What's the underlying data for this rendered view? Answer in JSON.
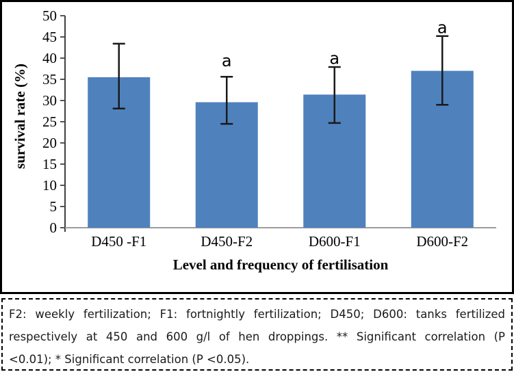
{
  "chart_data": {
    "type": "bar",
    "title": "",
    "xlabel": "Level and frequency of fertilisation",
    "ylabel": "survival rate (%)",
    "categories": [
      "D450 -F1",
      "D450-F2",
      "D600-F1",
      "D600-F2"
    ],
    "values": [
      35.5,
      29.6,
      31.4,
      37.0
    ],
    "error_low": [
      28.1,
      24.5,
      24.7,
      29.0
    ],
    "error_high": [
      43.4,
      35.6,
      37.9,
      45.2
    ],
    "annotations": [
      {
        "index": 1,
        "text": "a",
        "y": 38.1
      },
      {
        "index": 2,
        "text": "a",
        "y": 38.6
      },
      {
        "index": 3,
        "text": "a",
        "y": 45.9
      }
    ],
    "ylim": [
      0,
      50
    ],
    "ytick_step": 5,
    "grid": false,
    "legend": null,
    "bar_color": "#4F81BD",
    "error_color": "#1a1a1a",
    "axis_color": "#404040",
    "baseline_color": "#9c9c9c",
    "text_color": "#000000"
  },
  "caption": {
    "lines": [
      "F2: weekly fertilization; F1: fortnightly fertilization; D450; D600: tanks fertilized",
      "respectively at 450 and 600 g/l of hen droppings. ** Significant correlation (P",
      "<0.01); * Significant correlation (P <0.05)."
    ]
  }
}
